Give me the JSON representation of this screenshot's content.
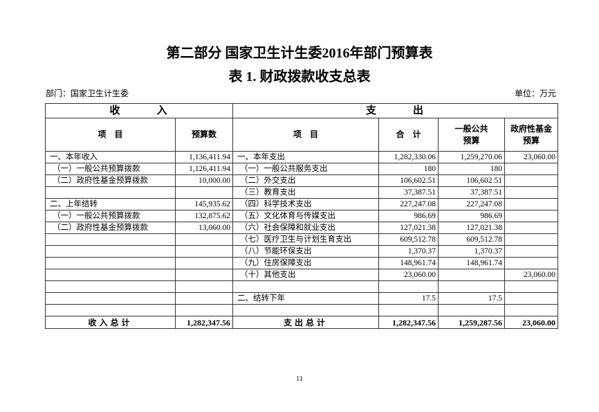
{
  "title": "第二部分  国家卫生计生委2016年部门预算表",
  "subtitle": "表 1. 财政拨款收支总表",
  "department": "部门：国家卫生计生委",
  "unit": "单位：万元",
  "header": {
    "income": "收　　　入",
    "expense": "支　　　出",
    "item": "项　目",
    "budget": "预算数",
    "item2": "项　目",
    "total": "合　计",
    "general": "一般公共\n预算",
    "fund": "政府性基金\n预算"
  },
  "rows": [
    {
      "in_item": "一、本年收入",
      "in_amt": "1,136,411.94",
      "out_item": "一、本年支出",
      "total": "1,282,330.06",
      "general": "1,259,270.06",
      "fund": "23,060.00"
    },
    {
      "in_item": "（一）一般公共预算拨款",
      "in_amt": "1,126,411.94",
      "out_item": "（一）一般公共服务支出",
      "total": "180",
      "general": "180",
      "fund": ""
    },
    {
      "in_item": "（二）政府性基金预算拨款",
      "in_amt": "10,000.00",
      "out_item": "（二）外交支出",
      "total": "106,602.51",
      "general": "106,602.51",
      "fund": ""
    },
    {
      "in_item": "",
      "in_amt": "",
      "out_item": "（三）教育支出",
      "total": "37,387.51",
      "general": "37,387.51",
      "fund": ""
    },
    {
      "in_item": "二、上年结转",
      "in_amt": "145,935.62",
      "out_item": "（四）科学技术支出",
      "total": "227,247.08",
      "general": "227,247.08",
      "fund": ""
    },
    {
      "in_item": "（一）一般公共预算拨款",
      "in_amt": "132,875.62",
      "out_item": "（五）文化体育与传媒支出",
      "total": "986.69",
      "general": "986.69",
      "fund": ""
    },
    {
      "in_item": "（二）政府性基金预算拨款",
      "in_amt": "13,060.00",
      "out_item": "（六）社会保障和就业支出",
      "total": "127,021.38",
      "general": "127,021.38",
      "fund": ""
    },
    {
      "in_item": "",
      "in_amt": "",
      "out_item": "（七）医疗卫生与计划生育支出",
      "total": "609,512.78",
      "general": "609,512.78",
      "fund": ""
    },
    {
      "in_item": "",
      "in_amt": "",
      "out_item": "（八）节能环保支出",
      "total": "1,370.37",
      "general": "1,370.37",
      "fund": ""
    },
    {
      "in_item": "",
      "in_amt": "",
      "out_item": "（九）住房保障支出",
      "total": "148,961.74",
      "general": "148,961.74",
      "fund": ""
    },
    {
      "in_item": "",
      "in_amt": "",
      "out_item": "（十）其他支出",
      "total": "23,060.00",
      "general": "",
      "fund": "23,060.00"
    },
    {
      "in_item": "",
      "in_amt": "",
      "out_item": "",
      "total": "",
      "general": "",
      "fund": ""
    },
    {
      "in_item": "",
      "in_amt": "",
      "out_item": "二、结转下年",
      "total": "17.5",
      "general": "17.5",
      "fund": ""
    },
    {
      "in_item": "",
      "in_amt": "",
      "out_item": "",
      "total": "",
      "general": "",
      "fund": ""
    }
  ],
  "totals": {
    "in_label": "收入总计",
    "in_amt": "1,282,347.56",
    "out_label": "支出总计",
    "total": "1,282,347.56",
    "general": "1,259,287.56",
    "fund": "23,060.00"
  },
  "page_number": "11"
}
